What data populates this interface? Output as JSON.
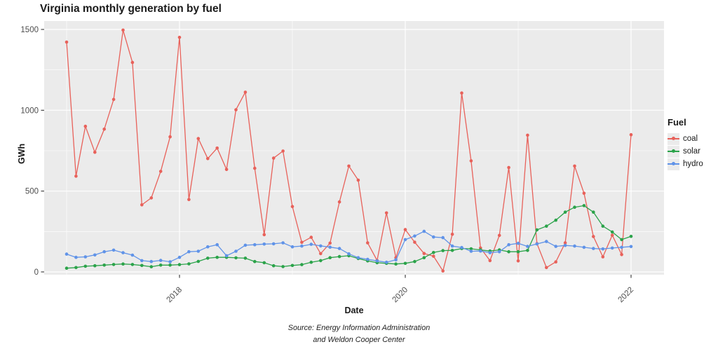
{
  "title": "Virginia monthly generation by fuel",
  "axes": {
    "y_title": "GWh",
    "x_title": "Date",
    "y_ticks": [
      0,
      500,
      1000,
      1500
    ],
    "y_minor": [
      250,
      750,
      1250
    ],
    "x_ticks": [
      {
        "label": "2018",
        "year": 2018
      },
      {
        "label": "2020",
        "year": 2020
      },
      {
        "label": "2022",
        "year": 2022
      }
    ],
    "x_minor_years": [
      2017,
      2019,
      2021
    ]
  },
  "caption": {
    "line1": "Source: Energy Information Administration",
    "line2": "and Weldon Cooper Center"
  },
  "legend": {
    "title": "Fuel"
  },
  "chart_data": {
    "type": "line",
    "title": "Virginia monthly generation by fuel",
    "xlabel": "Date",
    "ylabel": "GWh",
    "ylim": [
      0,
      1560
    ],
    "grid": true,
    "legend_position": "right",
    "style": {
      "panel_bg": "#ebebeb",
      "grid_color": "#ffffff",
      "tick_label_color": "#4d4d4d"
    },
    "x_frequency": "monthly",
    "x": [
      "2017-01",
      "2017-02",
      "2017-03",
      "2017-04",
      "2017-05",
      "2017-06",
      "2017-07",
      "2017-08",
      "2017-09",
      "2017-10",
      "2017-11",
      "2017-12",
      "2018-01",
      "2018-02",
      "2018-03",
      "2018-04",
      "2018-05",
      "2018-06",
      "2018-07",
      "2018-08",
      "2018-09",
      "2018-10",
      "2018-11",
      "2018-12",
      "2019-01",
      "2019-02",
      "2019-03",
      "2019-04",
      "2019-05",
      "2019-06",
      "2019-07",
      "2019-08",
      "2019-09",
      "2019-10",
      "2019-11",
      "2019-12",
      "2020-01",
      "2020-02",
      "2020-03",
      "2020-04",
      "2020-05",
      "2020-06",
      "2020-07",
      "2020-08",
      "2020-09",
      "2020-10",
      "2020-11",
      "2020-12",
      "2021-01",
      "2021-02",
      "2021-03",
      "2021-04",
      "2021-05",
      "2021-06",
      "2021-07",
      "2021-08",
      "2021-09",
      "2021-10",
      "2021-11",
      "2021-12",
      "2022-01"
    ],
    "series": [
      {
        "name": "coal",
        "color": "#e8615a",
        "values": [
          1422,
          592,
          901,
          740,
          883,
          1067,
          1496,
          1296,
          415,
          458,
          622,
          836,
          1451,
          448,
          825,
          701,
          766,
          634,
          1003,
          1112,
          641,
          230,
          704,
          748,
          404,
          183,
          214,
          113,
          178,
          433,
          655,
          568,
          180,
          71,
          365,
          88,
          262,
          184,
          114,
          97,
          6,
          233,
          1107,
          687,
          148,
          70,
          226,
          646,
          68,
          846,
          175,
          27,
          62,
          180,
          655,
          487,
          219,
          93,
          227,
          107,
          849
        ]
      },
      {
        "name": "solar",
        "color": "#2ba34a",
        "values": [
          23,
          27,
          35,
          38,
          42,
          46,
          49,
          46,
          40,
          32,
          42,
          42,
          45,
          50,
          65,
          85,
          90,
          90,
          87,
          85,
          64,
          57,
          38,
          33,
          40,
          45,
          60,
          70,
          88,
          95,
          100,
          83,
          68,
          57,
          53,
          49,
          53,
          64,
          88,
          120,
          132,
          133,
          145,
          143,
          136,
          129,
          136,
          125,
          125,
          133,
          260,
          283,
          320,
          370,
          400,
          410,
          370,
          283,
          247,
          200,
          220
        ]
      },
      {
        "name": "hydro",
        "color": "#6093e8",
        "values": [
          110,
          90,
          93,
          105,
          125,
          135,
          119,
          104,
          70,
          64,
          71,
          63,
          90,
          125,
          128,
          155,
          168,
          100,
          128,
          165,
          168,
          172,
          174,
          180,
          155,
          160,
          171,
          161,
          153,
          145,
          112,
          88,
          78,
          68,
          60,
          75,
          200,
          222,
          251,
          216,
          212,
          160,
          151,
          128,
          129,
          119,
          125,
          168,
          177,
          158,
          173,
          188,
          158,
          164,
          160,
          152,
          145,
          142,
          148,
          152,
          157
        ]
      }
    ]
  }
}
